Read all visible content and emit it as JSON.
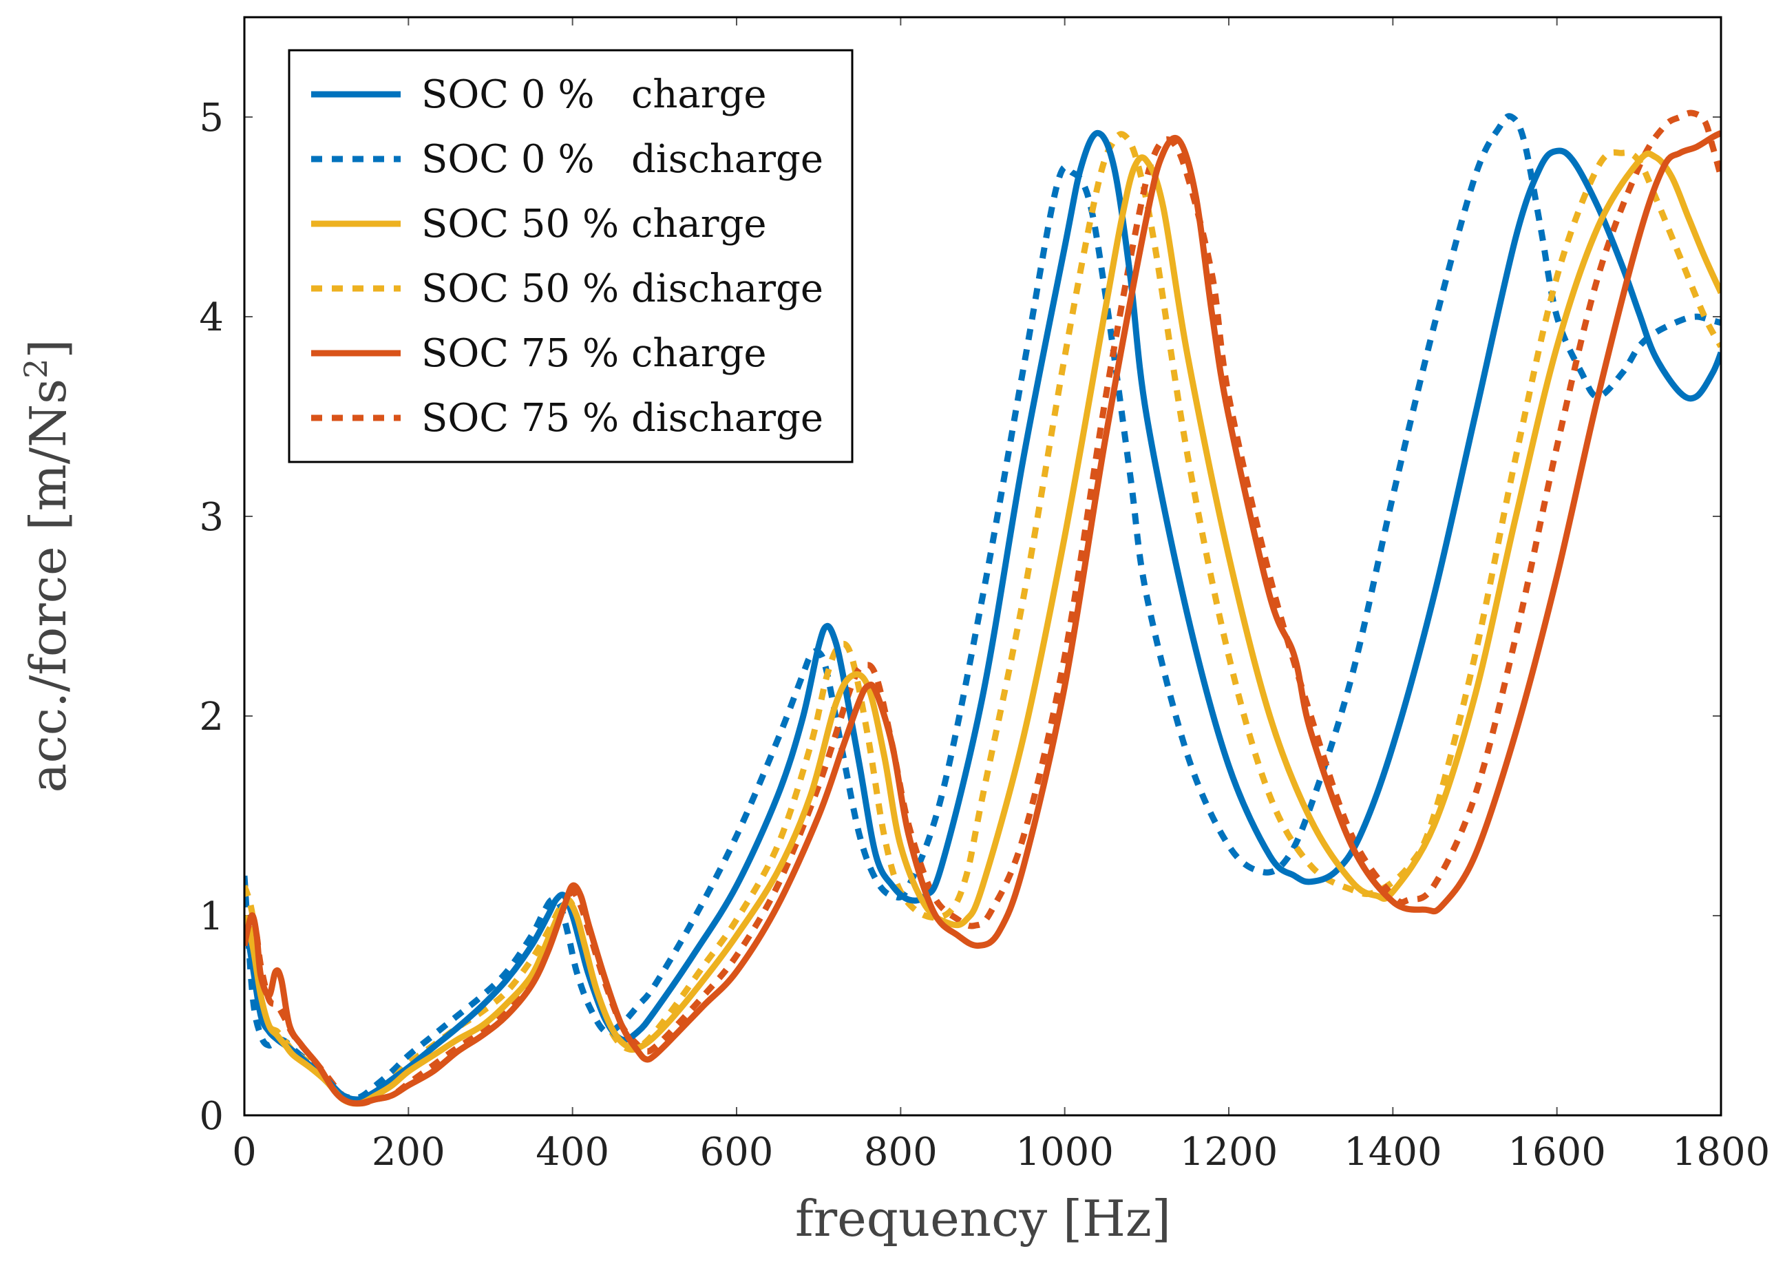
{
  "chart_data": {
    "type": "line",
    "title": "",
    "xlabel": "frequency [Hz]",
    "ylabel_main": "acc./force [m/Ns",
    "ylabel_sup": "2",
    "ylabel_end": "]",
    "xlim": [
      0,
      1800
    ],
    "ylim": [
      0,
      5.5
    ],
    "xticks": [
      0,
      200,
      400,
      600,
      800,
      1000,
      1200,
      1400,
      1600,
      1800
    ],
    "yticks": [
      0,
      1,
      2,
      3,
      4,
      5
    ],
    "legend_position": "top-left",
    "series": [
      {
        "name": "SOC 0 %   charge",
        "color": "#0072BD",
        "dash": "solid",
        "x": [
          0,
          10,
          20,
          30,
          40,
          50,
          60,
          80,
          100,
          120,
          140,
          160,
          180,
          200,
          230,
          260,
          290,
          320,
          350,
          370,
          380,
          390,
          400,
          410,
          420,
          440,
          460,
          480,
          500,
          550,
          600,
          650,
          680,
          700,
          710,
          720,
          730,
          750,
          770,
          790,
          810,
          830,
          850,
          900,
          950,
          1000,
          1020,
          1040,
          1060,
          1080,
          1100,
          1150,
          1200,
          1250,
          1280,
          1300,
          1330,
          1360,
          1400,
          1450,
          1500,
          1550,
          1580,
          1600,
          1620,
          1650,
          1680,
          1700,
          1720,
          1750,
          1770,
          1790,
          1800
        ],
        "y": [
          1.0,
          0.75,
          0.5,
          0.42,
          0.38,
          0.35,
          0.32,
          0.25,
          0.18,
          0.1,
          0.08,
          0.12,
          0.18,
          0.24,
          0.34,
          0.44,
          0.55,
          0.68,
          0.85,
          1.0,
          1.08,
          1.1,
          1.0,
          0.85,
          0.7,
          0.48,
          0.38,
          0.42,
          0.52,
          0.82,
          1.15,
          1.6,
          1.98,
          2.35,
          2.45,
          2.38,
          2.2,
          1.75,
          1.3,
          1.15,
          1.08,
          1.1,
          1.25,
          2.1,
          3.3,
          4.35,
          4.75,
          4.92,
          4.75,
          4.2,
          3.5,
          2.5,
          1.75,
          1.3,
          1.2,
          1.17,
          1.22,
          1.4,
          1.85,
          2.6,
          3.5,
          4.4,
          4.75,
          4.83,
          4.78,
          4.55,
          4.25,
          4.02,
          3.8,
          3.62,
          3.6,
          3.72,
          3.82
        ]
      },
      {
        "name": "SOC 0 %   discharge",
        "color": "#0072BD",
        "dash": "dashed",
        "x": [
          0,
          10,
          20,
          30,
          40,
          50,
          60,
          80,
          100,
          120,
          140,
          160,
          180,
          200,
          230,
          260,
          290,
          320,
          350,
          365,
          375,
          385,
          395,
          405,
          420,
          440,
          460,
          480,
          500,
          550,
          600,
          650,
          680,
          690,
          700,
          710,
          730,
          750,
          770,
          790,
          810,
          850,
          900,
          950,
          990,
          1010,
          1030,
          1050,
          1080,
          1100,
          1150,
          1200,
          1240,
          1270,
          1300,
          1350,
          1400,
          1450,
          1500,
          1530,
          1545,
          1560,
          1580,
          1600,
          1630,
          1650,
          1680,
          1700,
          1720,
          1750,
          1770,
          1790,
          1800
        ],
        "y": [
          1.2,
          0.6,
          0.4,
          0.35,
          0.38,
          0.37,
          0.33,
          0.26,
          0.17,
          0.1,
          0.09,
          0.15,
          0.22,
          0.3,
          0.4,
          0.5,
          0.6,
          0.72,
          0.9,
          1.02,
          1.08,
          1.05,
          0.9,
          0.72,
          0.55,
          0.42,
          0.46,
          0.55,
          0.65,
          1.0,
          1.4,
          1.88,
          2.2,
          2.3,
          2.32,
          2.22,
          1.8,
          1.4,
          1.18,
          1.1,
          1.15,
          1.6,
          2.6,
          3.75,
          4.65,
          4.72,
          4.58,
          4.1,
          3.2,
          2.6,
          1.8,
          1.35,
          1.22,
          1.28,
          1.55,
          2.2,
          3.1,
          3.95,
          4.7,
          4.95,
          5.0,
          4.88,
          4.45,
          4.0,
          3.72,
          3.6,
          3.72,
          3.85,
          3.92,
          3.98,
          4.0,
          3.98,
          3.97
        ]
      },
      {
        "name": "SOC 50 % charge",
        "color": "#EDB120",
        "dash": "solid",
        "x": [
          0,
          10,
          20,
          30,
          40,
          50,
          60,
          80,
          100,
          120,
          140,
          160,
          180,
          200,
          230,
          260,
          290,
          320,
          350,
          370,
          385,
          395,
          405,
          415,
          430,
          450,
          470,
          490,
          520,
          560,
          600,
          650,
          690,
          720,
          740,
          760,
          780,
          800,
          830,
          860,
          880,
          900,
          950,
          1000,
          1050,
          1070,
          1085,
          1100,
          1120,
          1150,
          1200,
          1250,
          1300,
          1350,
          1380,
          1400,
          1450,
          1500,
          1550,
          1600,
          1650,
          1700,
          1720,
          1740,
          1760,
          1780,
          1800
        ],
        "y": [
          1.0,
          0.85,
          0.6,
          0.45,
          0.4,
          0.35,
          0.3,
          0.24,
          0.17,
          0.08,
          0.06,
          0.1,
          0.15,
          0.22,
          0.3,
          0.38,
          0.45,
          0.56,
          0.7,
          0.88,
          1.02,
          1.07,
          1.0,
          0.85,
          0.62,
          0.42,
          0.34,
          0.36,
          0.48,
          0.68,
          0.9,
          1.22,
          1.6,
          2.05,
          2.2,
          2.15,
          1.8,
          1.35,
          1.05,
          0.96,
          0.98,
          1.15,
          1.9,
          2.9,
          4.05,
          4.5,
          4.75,
          4.78,
          4.55,
          3.8,
          2.8,
          2.0,
          1.48,
          1.17,
          1.1,
          1.12,
          1.45,
          2.1,
          3.0,
          3.85,
          4.45,
          4.78,
          4.8,
          4.7,
          4.5,
          4.3,
          4.12
        ]
      },
      {
        "name": "SOC 50 % discharge",
        "color": "#EDB120",
        "dash": "dashed",
        "x": [
          0,
          10,
          20,
          30,
          40,
          50,
          60,
          80,
          100,
          120,
          140,
          160,
          180,
          200,
          230,
          260,
          290,
          320,
          350,
          370,
          385,
          395,
          405,
          415,
          430,
          450,
          470,
          490,
          520,
          560,
          600,
          650,
          690,
          710,
          725,
          740,
          760,
          780,
          800,
          830,
          860,
          880,
          900,
          950,
          1000,
          1040,
          1060,
          1075,
          1090,
          1110,
          1150,
          1200,
          1250,
          1300,
          1350,
          1380,
          1420,
          1450,
          1500,
          1550,
          1600,
          1650,
          1680,
          1700,
          1720,
          1750,
          1780,
          1800
        ],
        "y": [
          1.15,
          1.0,
          0.6,
          0.45,
          0.42,
          0.37,
          0.32,
          0.26,
          0.18,
          0.08,
          0.07,
          0.12,
          0.18,
          0.26,
          0.35,
          0.44,
          0.52,
          0.62,
          0.78,
          0.92,
          1.04,
          1.08,
          1.0,
          0.83,
          0.6,
          0.4,
          0.33,
          0.37,
          0.52,
          0.75,
          0.98,
          1.35,
          1.85,
          2.2,
          2.35,
          2.3,
          1.9,
          1.4,
          1.12,
          1.0,
          1.02,
          1.2,
          1.6,
          2.6,
          3.8,
          4.65,
          4.88,
          4.9,
          4.75,
          4.35,
          3.3,
          2.3,
          1.6,
          1.25,
          1.13,
          1.12,
          1.25,
          1.5,
          2.3,
          3.3,
          4.2,
          4.75,
          4.82,
          4.78,
          4.6,
          4.3,
          4.0,
          3.85
        ]
      },
      {
        "name": "SOC 75 % charge",
        "color": "#D95319",
        "dash": "solid",
        "x": [
          0,
          5,
          10,
          15,
          20,
          30,
          38,
          45,
          55,
          70,
          90,
          110,
          125,
          140,
          160,
          180,
          200,
          230,
          260,
          290,
          320,
          350,
          370,
          390,
          400,
          410,
          420,
          440,
          460,
          480,
          490,
          500,
          520,
          560,
          600,
          650,
          700,
          730,
          750,
          760,
          770,
          790,
          810,
          840,
          870,
          895,
          920,
          950,
          1000,
          1050,
          1100,
          1120,
          1140,
          1160,
          1180,
          1200,
          1250,
          1280,
          1300,
          1350,
          1400,
          1440,
          1460,
          1500,
          1550,
          1600,
          1650,
          1700,
          1730,
          1750,
          1770,
          1790,
          1800
        ],
        "y": [
          0.85,
          0.95,
          1.0,
          0.9,
          0.7,
          0.6,
          0.72,
          0.68,
          0.45,
          0.35,
          0.25,
          0.12,
          0.07,
          0.06,
          0.08,
          0.1,
          0.15,
          0.22,
          0.32,
          0.4,
          0.5,
          0.65,
          0.82,
          1.05,
          1.15,
          1.1,
          0.95,
          0.68,
          0.45,
          0.32,
          0.28,
          0.3,
          0.38,
          0.55,
          0.72,
          1.05,
          1.5,
          1.85,
          2.08,
          2.15,
          2.12,
          1.85,
          1.4,
          1.02,
          0.9,
          0.85,
          0.92,
          1.25,
          2.15,
          3.4,
          4.5,
          4.82,
          4.88,
          4.6,
          4.0,
          3.5,
          2.6,
          2.3,
          1.92,
          1.35,
          1.07,
          1.03,
          1.05,
          1.3,
          1.92,
          2.7,
          3.6,
          4.4,
          4.75,
          4.82,
          4.85,
          4.9,
          4.92
        ]
      },
      {
        "name": "SOC 75 % discharge",
        "color": "#D95319",
        "dash": "dashed",
        "x": [
          0,
          5,
          10,
          15,
          20,
          30,
          40,
          50,
          60,
          80,
          100,
          120,
          140,
          160,
          180,
          200,
          230,
          260,
          290,
          320,
          350,
          370,
          390,
          400,
          410,
          420,
          440,
          460,
          480,
          490,
          500,
          520,
          560,
          600,
          650,
          700,
          740,
          755,
          770,
          790,
          810,
          840,
          870,
          890,
          910,
          950,
          1000,
          1050,
          1090,
          1110,
          1130,
          1150,
          1180,
          1200,
          1250,
          1300,
          1350,
          1400,
          1420,
          1450,
          1500,
          1550,
          1600,
          1650,
          1700,
          1730,
          1750,
          1765,
          1780,
          1790,
          1800
        ],
        "y": [
          0.9,
          0.95,
          1.0,
          0.9,
          0.75,
          0.58,
          0.55,
          0.48,
          0.4,
          0.3,
          0.2,
          0.1,
          0.06,
          0.08,
          0.1,
          0.16,
          0.25,
          0.34,
          0.42,
          0.53,
          0.68,
          0.85,
          1.05,
          1.12,
          1.05,
          0.92,
          0.66,
          0.45,
          0.35,
          0.32,
          0.34,
          0.42,
          0.6,
          0.8,
          1.15,
          1.65,
          2.15,
          2.25,
          2.2,
          1.85,
          1.45,
          1.1,
          0.98,
          0.95,
          1.02,
          1.4,
          2.3,
          3.6,
          4.5,
          4.82,
          4.88,
          4.7,
          4.2,
          3.6,
          2.7,
          2.0,
          1.4,
          1.1,
          1.08,
          1.15,
          1.6,
          2.4,
          3.35,
          4.2,
          4.75,
          4.95,
          5.0,
          5.02,
          4.98,
          4.85,
          4.7
        ]
      }
    ]
  }
}
